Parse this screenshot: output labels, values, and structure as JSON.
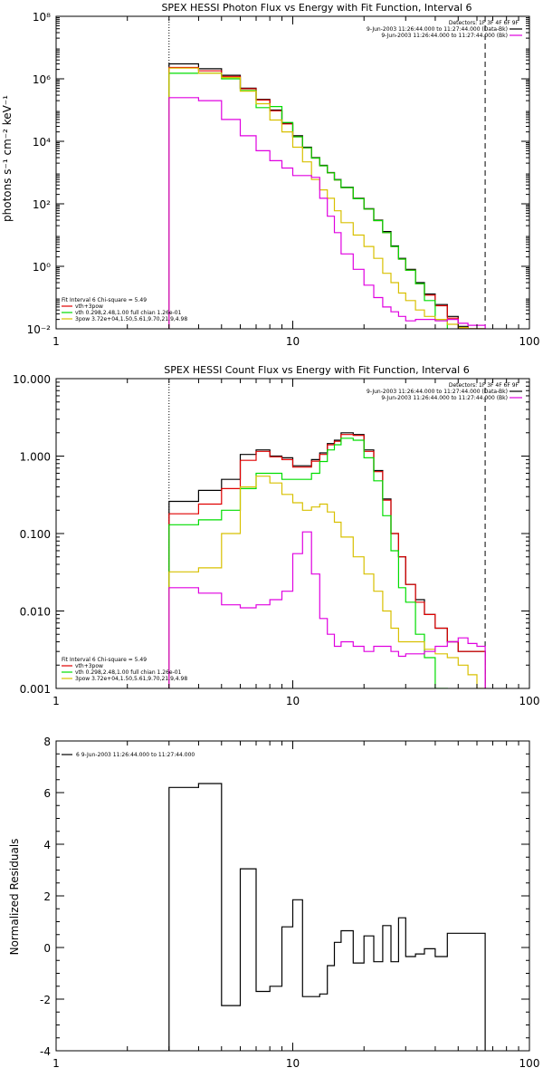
{
  "colors": {
    "black": "#000000",
    "red": "#e00000",
    "green": "#00dd00",
    "yellow": "#d8c000",
    "magenta": "#e000e0",
    "background": "#ffffff"
  },
  "chart_data": [
    {
      "type": "line",
      "title": "SPEX HESSI Photon Flux vs Energy with Fit Function, Interval 6",
      "xlabel": "",
      "ylabel": "photons s⁻¹ cm⁻² keV⁻¹",
      "xscale": "log",
      "yscale": "log",
      "xlim": [
        1,
        100
      ],
      "ylim": [
        0.01,
        100000000
      ],
      "x_ticks": [
        "1",
        "10",
        "100"
      ],
      "y_ticks": [
        "10⁻²",
        "10⁰",
        "10²",
        "10⁴",
        "10⁶",
        "10⁸"
      ],
      "y_tick_values": [
        0.01,
        1,
        100,
        10000,
        1000000,
        100000000
      ],
      "vlines": [
        {
          "x": 3,
          "style": "dotted"
        },
        {
          "x": 65,
          "style": "dashed"
        }
      ],
      "legend_top": [
        "Detectors: 1F 3F 4F 6F 9F",
        "9-Jun-2003 11:26:44.000 to 11:27:44.000 (Data-Bk)",
        "9-Jun-2003 11:26:44.000 to 11:27:44.000 (Bk)"
      ],
      "legend_bottom": [
        "Fit Interval 6    Chi-square = 5.49",
        "vth+3pow",
        "vth 0.298,2.48,1.00  full chian 1.26e-01",
        "3pow 3.72e+04,1.50,5.61,9.70,21.9,4.98"
      ],
      "legend_top_colors": [
        "#000000",
        "#e000e0"
      ],
      "legend_bottom_colors": [
        "#e00000",
        "#00dd00",
        "#d8c000"
      ],
      "edges": [
        3,
        4,
        5,
        6,
        7,
        8,
        9,
        10,
        11,
        12,
        13,
        14,
        15,
        16,
        18,
        20,
        22,
        24,
        26,
        28,
        30,
        33,
        36,
        40,
        45,
        50,
        55,
        60,
        65
      ],
      "series": [
        {
          "color": "#000000",
          "values": [
            3000000,
            2100000,
            1300000,
            500000,
            220000,
            100000,
            38000,
            15000,
            6500,
            3000,
            1700,
            1000,
            600,
            340,
            150,
            70,
            30,
            13,
            4.5,
            1.8,
            0.8,
            0.3,
            0.13,
            0.06,
            0.025,
            0.012,
            0.01,
            0.01
          ]
        },
        {
          "color": "#e00000",
          "values": [
            2300000,
            1800000,
            1200000,
            480000,
            210000,
            95000,
            36000,
            14000,
            6200,
            2900,
            1650,
            980,
            580,
            330,
            145,
            68,
            29,
            12,
            4.3,
            1.7,
            0.75,
            0.28,
            0.12,
            0.055,
            0.022,
            0.011,
            0.01,
            0.01
          ]
        },
        {
          "color": "#00dd00",
          "values": [
            1500000,
            1500000,
            1000000,
            420000,
            120000,
            130000,
            40000,
            14000,
            6200,
            2900,
            1650,
            980,
            580,
            330,
            145,
            68,
            29,
            12,
            4.3,
            1.7,
            0.75,
            0.28,
            0.08,
            0.02,
            0.005,
            0.005,
            0.005,
            0.005
          ]
        },
        {
          "color": "#d8c000",
          "values": [
            2200000,
            1500000,
            1100000,
            400000,
            160000,
            48000,
            20000,
            6500,
            2200,
            600,
            280,
            150,
            60,
            25,
            10,
            4.3,
            1.8,
            0.6,
            0.3,
            0.14,
            0.08,
            0.04,
            0.025,
            0.02,
            0.014,
            0.011,
            0.01,
            0.01
          ]
        },
        {
          "color": "#e000e0",
          "values": [
            250000,
            200000,
            50000,
            15000,
            5000,
            2400,
            1400,
            800,
            800,
            700,
            150,
            40,
            12,
            2.5,
            0.8,
            0.25,
            0.1,
            0.05,
            0.035,
            0.025,
            0.018,
            0.02,
            0.02,
            0.018,
            0.02,
            0.015,
            0.013,
            0.013
          ]
        }
      ]
    },
    {
      "type": "line",
      "title": "SPEX HESSI Count Flux vs Energy with Fit Function, Interval 6",
      "xlabel": "",
      "ylabel": "",
      "xscale": "log",
      "yscale": "log",
      "xlim": [
        1,
        100
      ],
      "ylim": [
        0.001,
        10
      ],
      "x_ticks": [
        "1",
        "10",
        "100"
      ],
      "y_ticks": [
        "0.001",
        "0.010",
        "0.100",
        "1.000",
        "10.000"
      ],
      "y_tick_values": [
        0.001,
        0.01,
        0.1,
        1,
        10
      ],
      "vlines": [
        {
          "x": 3,
          "style": "dotted"
        },
        {
          "x": 65,
          "style": "dashed"
        }
      ],
      "legend_top": [
        "Detectors: 1F 3F 4F 6F 9F",
        "9-Jun-2003 11:26:44.000 to 11:27:44.000 (Data-Bk)",
        "9-Jun-2003 11:26:44.000 to 11:27:44.000 (Bk)"
      ],
      "legend_bottom": [
        "Fit Interval 6    Chi-square = 5.49",
        "vth+3pow",
        "vth 0.298,2.48,1.00  full chian 1.26e-01",
        "3pow 3.72e+04,1.50,5.61,9.70,21.9,4.98"
      ],
      "legend_top_colors": [
        "#000000",
        "#e000e0"
      ],
      "legend_bottom_colors": [
        "#e00000",
        "#00dd00",
        "#d8c000"
      ],
      "edges": [
        3,
        4,
        5,
        6,
        7,
        8,
        9,
        10,
        11,
        12,
        13,
        14,
        15,
        16,
        18,
        20,
        22,
        24,
        26,
        28,
        30,
        33,
        36,
        40,
        45,
        50,
        55,
        60,
        65
      ],
      "series": [
        {
          "color": "#000000",
          "values": [
            0.26,
            0.36,
            0.5,
            1.05,
            1.2,
            1.0,
            0.95,
            0.75,
            0.75,
            0.9,
            1.1,
            1.45,
            1.6,
            2.0,
            1.9,
            1.2,
            0.65,
            0.28,
            0.1,
            0.05,
            0.022,
            0.014,
            0.009,
            0.006,
            0.004,
            0.003,
            0.003,
            0.003
          ]
        },
        {
          "color": "#e00000",
          "values": [
            0.18,
            0.24,
            0.38,
            0.88,
            1.15,
            0.98,
            0.9,
            0.72,
            0.72,
            0.86,
            1.05,
            1.4,
            1.55,
            1.9,
            1.85,
            1.15,
            0.63,
            0.27,
            0.1,
            0.05,
            0.022,
            0.013,
            0.009,
            0.006,
            0.004,
            0.003,
            0.003,
            0.003
          ]
        },
        {
          "color": "#00dd00",
          "values": [
            0.13,
            0.15,
            0.2,
            0.38,
            0.6,
            0.6,
            0.5,
            0.5,
            0.5,
            0.6,
            0.85,
            1.2,
            1.4,
            1.7,
            1.6,
            0.95,
            0.48,
            0.17,
            0.06,
            0.02,
            0.013,
            0.005,
            0.0025,
            0.001,
            0.0008,
            0.0008,
            0.0008,
            0.0008
          ]
        },
        {
          "color": "#d8c000",
          "values": [
            0.032,
            0.036,
            0.1,
            0.4,
            0.55,
            0.45,
            0.32,
            0.25,
            0.2,
            0.22,
            0.24,
            0.19,
            0.14,
            0.09,
            0.05,
            0.03,
            0.018,
            0.01,
            0.006,
            0.004,
            0.004,
            0.004,
            0.0032,
            0.0028,
            0.0025,
            0.002,
            0.0015,
            0.001
          ]
        },
        {
          "color": "#e000e0",
          "values": [
            0.02,
            0.017,
            0.012,
            0.011,
            0.012,
            0.014,
            0.018,
            0.055,
            0.105,
            0.03,
            0.008,
            0.005,
            0.0035,
            0.004,
            0.0035,
            0.003,
            0.0035,
            0.0035,
            0.003,
            0.0026,
            0.0028,
            0.0028,
            0.003,
            0.0035,
            0.004,
            0.0045,
            0.0038,
            0.0035
          ]
        }
      ]
    },
    {
      "type": "line",
      "title": "",
      "xlabel": "",
      "ylabel": "Normalized Residuals",
      "xscale": "log",
      "yscale": "linear",
      "xlim": [
        1,
        100
      ],
      "ylim": [
        -4,
        8
      ],
      "x_ticks": [
        "1",
        "10",
        "100"
      ],
      "y_ticks": [
        "-4",
        "-2",
        "0",
        "2",
        "4",
        "6",
        "8"
      ],
      "y_tick_values": [
        -4,
        -2,
        0,
        2,
        4,
        6,
        8
      ],
      "legend_top_left": "6  9-Jun-2003 11:26:44.000 to 11:27:44.000",
      "edges": [
        3,
        4,
        5,
        6,
        7,
        8,
        9,
        10,
        11,
        12,
        13,
        14,
        15,
        16,
        18,
        20,
        22,
        24,
        26,
        28,
        30,
        33,
        36,
        40,
        45,
        50,
        55,
        60,
        65
      ],
      "series": [
        {
          "color": "#000000",
          "values": [
            6.2,
            6.35,
            -2.25,
            3.05,
            -1.7,
            -1.5,
            0.8,
            1.85,
            -1.9,
            -1.9,
            -1.8,
            -0.7,
            0.2,
            0.65,
            -0.6,
            0.45,
            -0.55,
            0.85,
            -0.55,
            1.15,
            -0.35,
            -0.25,
            -0.05,
            -0.35,
            0.55,
            0.55,
            0.55,
            0.55
          ]
        }
      ]
    }
  ]
}
